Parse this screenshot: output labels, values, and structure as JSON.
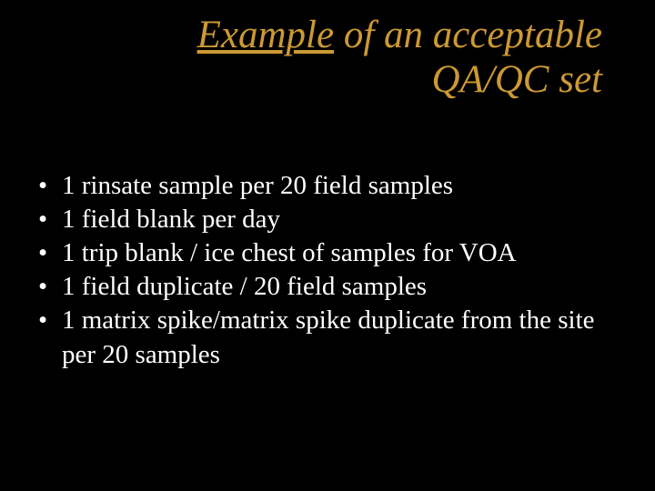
{
  "colors": {
    "background": "#000000",
    "title": "#cc9933",
    "body_text": "#ffffff",
    "bullet": "#ffffff"
  },
  "typography": {
    "family": "Times New Roman",
    "title_fontsize_pt": 43,
    "title_italic": true,
    "body_fontsize_pt": 29
  },
  "title": {
    "line1_underlined": "Example",
    "line1_rest": " of an acceptable",
    "line2": "QA/QC set"
  },
  "bullets": [
    "1 rinsate sample per 20 field samples",
    "1 field blank per day",
    "1 trip blank / ice chest of samples for VOA",
    "1 field duplicate / 20 field samples",
    "1 matrix spike/matrix spike duplicate from the site per 20 samples"
  ]
}
